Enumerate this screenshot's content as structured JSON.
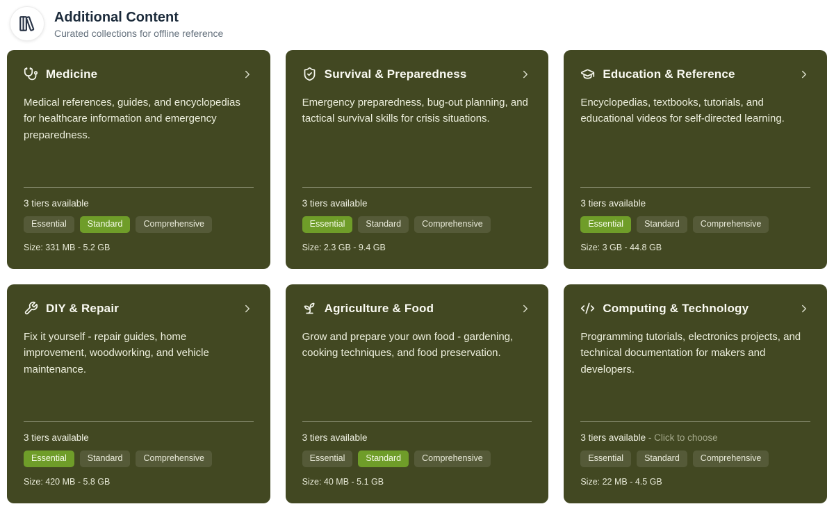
{
  "header": {
    "title": "Additional Content",
    "subtitle": "Curated collections for offline reference",
    "icon": "library-icon"
  },
  "colors": {
    "card_background": "#424822",
    "selected_badge_green": "#6f9d29",
    "card_text": "#edefdd",
    "hint_text": "#a6aa8c"
  },
  "cards": [
    {
      "title": "Medicine",
      "icon": "stethoscope-icon",
      "description": "Medical references, guides, and encyclopedias for healthcare information and emergency preparedness.",
      "tiers_label": "3 tiers available",
      "hint": "",
      "tiers": [
        {
          "label": "Essential",
          "selected": false
        },
        {
          "label": "Standard",
          "selected": true
        },
        {
          "label": "Comprehensive",
          "selected": false
        }
      ],
      "size": "Size: 331 MB - 5.2 GB"
    },
    {
      "title": "Survival & Preparedness",
      "icon": "shield-check-icon",
      "description": "Emergency preparedness, bug-out planning, and tactical survival skills for crisis situations.",
      "tiers_label": "3 tiers available",
      "hint": "",
      "tiers": [
        {
          "label": "Essential",
          "selected": true
        },
        {
          "label": "Standard",
          "selected": false
        },
        {
          "label": "Comprehensive",
          "selected": false
        }
      ],
      "size": "Size: 2.3 GB - 9.4 GB"
    },
    {
      "title": "Education & Reference",
      "icon": "graduation-cap-icon",
      "description": "Encyclopedias, textbooks, tutorials, and educational videos for self-directed learning.",
      "tiers_label": "3 tiers available",
      "hint": "",
      "tiers": [
        {
          "label": "Essential",
          "selected": true
        },
        {
          "label": "Standard",
          "selected": false
        },
        {
          "label": "Comprehensive",
          "selected": false
        }
      ],
      "size": "Size: 3 GB - 44.8 GB"
    },
    {
      "title": "DIY & Repair",
      "icon": "wrench-icon",
      "description": "Fix it yourself - repair guides, home improvement, woodworking, and vehicle maintenance.",
      "tiers_label": "3 tiers available",
      "hint": "",
      "tiers": [
        {
          "label": "Essential",
          "selected": true
        },
        {
          "label": "Standard",
          "selected": false
        },
        {
          "label": "Comprehensive",
          "selected": false
        }
      ],
      "size": "Size: 420 MB - 5.8 GB"
    },
    {
      "title": "Agriculture & Food",
      "icon": "sprout-icon",
      "description": "Grow and prepare your own food - gardening, cooking techniques, and food preservation.",
      "tiers_label": "3 tiers available",
      "hint": "",
      "tiers": [
        {
          "label": "Essential",
          "selected": false
        },
        {
          "label": "Standard",
          "selected": true
        },
        {
          "label": "Comprehensive",
          "selected": false
        }
      ],
      "size": "Size: 40 MB - 5.1 GB"
    },
    {
      "title": "Computing & Technology",
      "icon": "code-icon",
      "description": "Programming tutorials, electronics projects, and technical documentation for makers and developers.",
      "tiers_label": "3 tiers available",
      "hint": " - Click to choose",
      "tiers": [
        {
          "label": "Essential",
          "selected": false
        },
        {
          "label": "Standard",
          "selected": false
        },
        {
          "label": "Comprehensive",
          "selected": false
        }
      ],
      "size": "Size: 22 MB - 4.5 GB"
    }
  ]
}
